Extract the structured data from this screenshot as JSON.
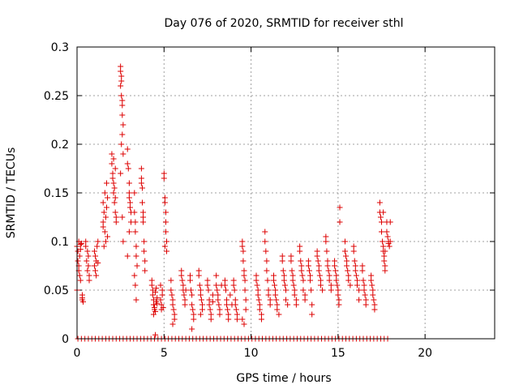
{
  "chart_data": {
    "type": "scatter",
    "title": "Day 076 of 2020, SRMTID for receiver sthl",
    "xlabel": "GPS time / hours",
    "ylabel": "SRMTID / TECUs",
    "xlim": [
      0,
      24
    ],
    "ylim": [
      0,
      0.3
    ],
    "xticks": [
      0,
      5,
      10,
      15,
      20
    ],
    "yticks": [
      0,
      0.05,
      0.1,
      0.15,
      0.2,
      0.25,
      0.3
    ],
    "ytick_labels": [
      "0",
      "0.05",
      "0.1",
      "0.15",
      "0.2",
      "0.25",
      "0.3"
    ],
    "grid": true,
    "marker": "+",
    "color": "#dd0000",
    "zero_line_points": {
      "x_start": 0.05,
      "x_end": 18.0,
      "step": 0.2,
      "y": 0
    },
    "series": [
      {
        "x": [
          0.0,
          0.0,
          0.05,
          0.05,
          0.1,
          0.1,
          0.1,
          0.15,
          0.15,
          0.2,
          0.2,
          0.2,
          0.25,
          0.3,
          0.3,
          0.5,
          0.5,
          0.55,
          0.6,
          0.6,
          0.65,
          0.65,
          0.7,
          0.7,
          0.3,
          0.35,
          1.0,
          1.0,
          1.05,
          1.05,
          1.1,
          1.1,
          1.15,
          1.2,
          1.2,
          1.5,
          1.5,
          1.55,
          1.6,
          1.6,
          1.65,
          1.65,
          1.7,
          1.7,
          1.75,
          1.75,
          1.5,
          1.55,
          2.0,
          2.0,
          2.05,
          2.05,
          2.1,
          2.1,
          2.15,
          2.15,
          2.2,
          2.2,
          2.25,
          2.25,
          2.1,
          2.2,
          2.5,
          2.5,
          2.55,
          2.55,
          2.6,
          2.6,
          2.65,
          2.65,
          2.5,
          2.55,
          2.6,
          2.6,
          2.55,
          2.5,
          2.65,
          2.6,
          2.9,
          2.9,
          3.0,
          3.0,
          3.05,
          3.05,
          3.1,
          3.1,
          2.95,
          3.0,
          2.9,
          3.0,
          3.3,
          3.3,
          3.35,
          3.35,
          3.4,
          3.4,
          3.45,
          3.3,
          3.35,
          3.4,
          3.7,
          3.7,
          3.75,
          3.75,
          3.8,
          3.8,
          3.85,
          3.85,
          3.9,
          3.9,
          3.7,
          3.8,
          4.3,
          4.3,
          4.35,
          4.35,
          4.4,
          4.4,
          4.45,
          4.45,
          4.5,
          4.5,
          4.55,
          4.55,
          4.6,
          4.6,
          4.4,
          4.5,
          4.8,
          4.8,
          4.85,
          4.85,
          4.9,
          4.9,
          4.95,
          5.0,
          5.0,
          5.05,
          5.05,
          5.1,
          5.1,
          5.15,
          5.15,
          5.1,
          5.05,
          5.4,
          5.4,
          5.45,
          5.5,
          5.5,
          5.55,
          5.6,
          5.6,
          5.5,
          6.0,
          6.0,
          6.05,
          6.1,
          6.1,
          6.15,
          6.2,
          6.2,
          6.25,
          6.5,
          6.5,
          6.55,
          6.6,
          6.6,
          6.65,
          6.7,
          6.7,
          6.6,
          7.0,
          7.0,
          7.05,
          7.1,
          7.1,
          7.15,
          7.2,
          7.2,
          7.1,
          7.5,
          7.5,
          7.55,
          7.6,
          7.6,
          7.65,
          7.7,
          7.7,
          7.8,
          7.8,
          8.0,
          8.0,
          8.05,
          8.1,
          8.1,
          8.15,
          8.2,
          8.2,
          8.3,
          8.5,
          8.5,
          8.55,
          8.6,
          8.6,
          8.65,
          8.7,
          8.7,
          8.8,
          8.9,
          9.0,
          9.0,
          9.05,
          9.1,
          9.1,
          9.15,
          9.2,
          9.2,
          9.5,
          9.5,
          9.55,
          9.55,
          9.6,
          9.6,
          9.65,
          9.65,
          9.7,
          9.7,
          9.5,
          9.6,
          10.3,
          10.3,
          10.35,
          10.4,
          10.4,
          10.45,
          10.5,
          10.5,
          10.6,
          10.6,
          10.8,
          10.8,
          10.85,
          10.9,
          10.9,
          10.95,
          11.0,
          11.0,
          11.1,
          11.1,
          11.3,
          11.3,
          11.35,
          11.4,
          11.4,
          11.45,
          11.5,
          11.5,
          11.6,
          11.8,
          11.8,
          11.85,
          11.9,
          11.9,
          11.95,
          12.0,
          12.0,
          12.1,
          12.3,
          12.3,
          12.35,
          12.4,
          12.4,
          12.45,
          12.5,
          12.5,
          12.6,
          12.6,
          12.8,
          12.8,
          12.85,
          12.9,
          12.9,
          12.95,
          13.0,
          13.0,
          13.1,
          13.1,
          13.3,
          13.3,
          13.35,
          13.4,
          13.4,
          13.45,
          13.5,
          13.5,
          13.8,
          13.8,
          13.85,
          13.9,
          13.9,
          13.95,
          14.0,
          14.0,
          14.1,
          14.3,
          14.3,
          14.35,
          14.4,
          14.4,
          14.45,
          14.5,
          14.5,
          14.6,
          14.6,
          14.8,
          14.8,
          14.85,
          14.9,
          14.9,
          14.95,
          15.0,
          15.0,
          15.05,
          15.05,
          15.1,
          15.1,
          15.4,
          15.4,
          15.45,
          15.5,
          15.5,
          15.55,
          15.6,
          15.6,
          15.7,
          15.9,
          15.9,
          15.95,
          16.0,
          16.0,
          16.05,
          16.1,
          16.1,
          16.2,
          16.2,
          16.4,
          16.4,
          16.45,
          16.5,
          16.5,
          16.55,
          16.6,
          16.6,
          16.9,
          16.9,
          16.95,
          17.0,
          17.0,
          17.05,
          17.1,
          17.1,
          17.4,
          17.4,
          17.45,
          17.5,
          17.5,
          17.55,
          17.6,
          17.6,
          17.65,
          17.65,
          17.7,
          17.7,
          17.8,
          17.8,
          17.85,
          17.9,
          17.9,
          17.95,
          18.0,
          18.0,
          17.6,
          17.7
        ],
        "y": [
          0.095,
          0.05,
          0.09,
          0.08,
          0.1,
          0.075,
          0.07,
          0.085,
          0.065,
          0.097,
          0.092,
          0.06,
          0.098,
          0.045,
          0.04,
          0.1,
          0.095,
          0.08,
          0.07,
          0.09,
          0.075,
          0.085,
          0.065,
          0.06,
          0.042,
          0.038,
          0.09,
          0.075,
          0.085,
          0.07,
          0.08,
          0.065,
          0.095,
          0.1,
          0.078,
          0.14,
          0.12,
          0.13,
          0.11,
          0.15,
          0.125,
          0.1,
          0.16,
          0.135,
          0.145,
          0.105,
          0.115,
          0.095,
          0.19,
          0.18,
          0.17,
          0.165,
          0.16,
          0.15,
          0.155,
          0.14,
          0.145,
          0.13,
          0.12,
          0.125,
          0.185,
          0.175,
          0.28,
          0.275,
          0.27,
          0.265,
          0.245,
          0.24,
          0.22,
          0.19,
          0.26,
          0.25,
          0.23,
          0.21,
          0.2,
          0.17,
          0.1,
          0.125,
          0.195,
          0.18,
          0.16,
          0.15,
          0.14,
          0.135,
          0.13,
          0.12,
          0.175,
          0.145,
          0.085,
          0.11,
          0.15,
          0.13,
          0.12,
          0.11,
          0.095,
          0.085,
          0.075,
          0.065,
          0.055,
          0.04,
          0.175,
          0.16,
          0.155,
          0.14,
          0.13,
          0.12,
          0.1,
          0.09,
          0.08,
          0.07,
          0.165,
          0.125,
          0.06,
          0.055,
          0.05,
          0.045,
          0.04,
          0.035,
          0.032,
          0.03,
          0.028,
          0.048,
          0.052,
          0.038,
          0.042,
          0.036,
          0.025,
          0.004,
          0.055,
          0.04,
          0.035,
          0.03,
          0.045,
          0.05,
          0.032,
          0.17,
          0.165,
          0.145,
          0.14,
          0.13,
          0.12,
          0.1,
          0.09,
          0.11,
          0.095,
          0.06,
          0.05,
          0.045,
          0.04,
          0.035,
          0.03,
          0.025,
          0.02,
          0.015,
          0.07,
          0.065,
          0.06,
          0.055,
          0.05,
          0.045,
          0.04,
          0.035,
          0.05,
          0.065,
          0.06,
          0.05,
          0.045,
          0.035,
          0.03,
          0.025,
          0.02,
          0.01,
          0.07,
          0.065,
          0.055,
          0.05,
          0.045,
          0.04,
          0.035,
          0.03,
          0.025,
          0.06,
          0.055,
          0.05,
          0.04,
          0.035,
          0.03,
          0.025,
          0.02,
          0.045,
          0.038,
          0.065,
          0.055,
          0.05,
          0.045,
          0.04,
          0.035,
          0.03,
          0.025,
          0.055,
          0.06,
          0.055,
          0.05,
          0.04,
          0.035,
          0.03,
          0.025,
          0.02,
          0.045,
          0.035,
          0.06,
          0.055,
          0.05,
          0.04,
          0.035,
          0.03,
          0.025,
          0.02,
          0.1,
          0.095,
          0.09,
          0.08,
          0.07,
          0.065,
          0.06,
          0.05,
          0.04,
          0.03,
          0.02,
          0.015,
          0.065,
          0.06,
          0.055,
          0.05,
          0.045,
          0.04,
          0.035,
          0.03,
          0.025,
          0.02,
          0.11,
          0.1,
          0.09,
          0.08,
          0.07,
          0.06,
          0.05,
          0.045,
          0.04,
          0.035,
          0.065,
          0.06,
          0.055,
          0.05,
          0.045,
          0.04,
          0.035,
          0.03,
          0.025,
          0.085,
          0.08,
          0.07,
          0.065,
          0.06,
          0.055,
          0.05,
          0.04,
          0.035,
          0.085,
          0.08,
          0.07,
          0.065,
          0.06,
          0.055,
          0.05,
          0.045,
          0.04,
          0.035,
          0.095,
          0.09,
          0.08,
          0.075,
          0.07,
          0.065,
          0.06,
          0.05,
          0.045,
          0.04,
          0.08,
          0.075,
          0.07,
          0.065,
          0.06,
          0.05,
          0.035,
          0.025,
          0.09,
          0.085,
          0.08,
          0.075,
          0.07,
          0.065,
          0.06,
          0.055,
          0.05,
          0.105,
          0.1,
          0.09,
          0.08,
          0.075,
          0.07,
          0.065,
          0.06,
          0.055,
          0.05,
          0.08,
          0.075,
          0.07,
          0.065,
          0.06,
          0.055,
          0.05,
          0.045,
          0.04,
          0.035,
          0.135,
          0.12,
          0.1,
          0.09,
          0.085,
          0.08,
          0.075,
          0.07,
          0.065,
          0.06,
          0.055,
          0.095,
          0.09,
          0.08,
          0.075,
          0.07,
          0.065,
          0.06,
          0.055,
          0.05,
          0.04,
          0.075,
          0.07,
          0.06,
          0.055,
          0.05,
          0.045,
          0.04,
          0.035,
          0.065,
          0.06,
          0.055,
          0.05,
          0.045,
          0.04,
          0.035,
          0.03,
          0.14,
          0.13,
          0.125,
          0.12,
          0.11,
          0.1,
          0.095,
          0.09,
          0.085,
          0.08,
          0.075,
          0.07,
          0.12,
          0.11,
          0.105,
          0.1,
          0.098,
          0.095,
          0.12,
          0.1,
          0.13,
          0.09
        ]
      }
    ]
  }
}
